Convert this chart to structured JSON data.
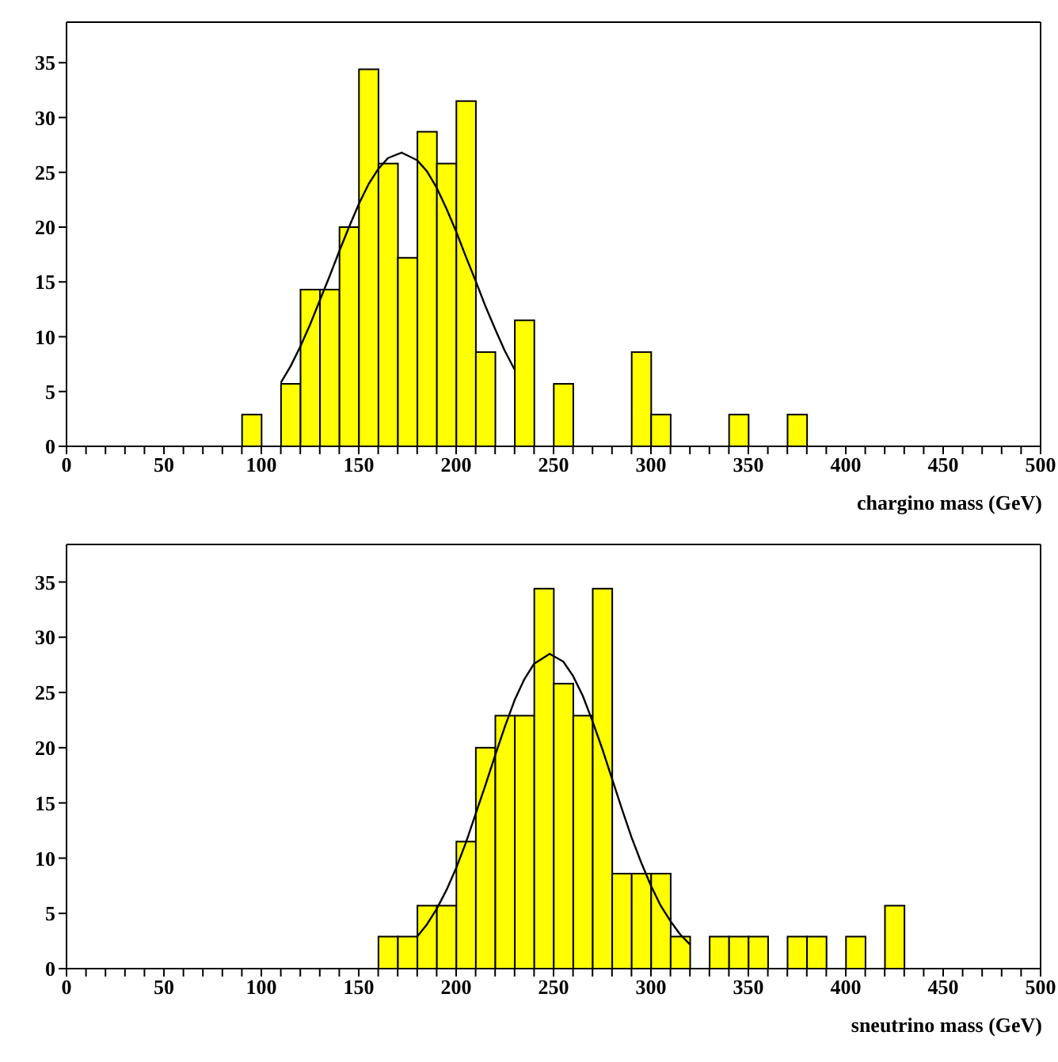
{
  "chart_data": [
    {
      "type": "histogram",
      "xlabel": "chargino mass (GeV)",
      "color": "#ffff00",
      "bins": [
        90,
        100,
        110,
        120,
        130,
        140,
        150,
        160,
        170,
        180,
        190,
        200,
        210,
        220,
        230,
        240,
        250,
        260,
        270,
        280,
        290,
        300,
        310,
        320,
        330,
        340,
        350,
        360,
        370,
        380
      ],
      "values": [
        2.9,
        0,
        5.7,
        14.3,
        14.3,
        20,
        34.4,
        25.8,
        17.2,
        28.7,
        25.8,
        31.5,
        8.6,
        0,
        11.5,
        0,
        5.7,
        0,
        0,
        0,
        8.6,
        2.9,
        0,
        0,
        0,
        2.9,
        0,
        0,
        2.9
      ],
      "series": [
        {
          "type": "line",
          "color": "#000000",
          "x": [
            110,
            115,
            120,
            125,
            130,
            135,
            140,
            145,
            150,
            155,
            160,
            165,
            172,
            180,
            185,
            190,
            195,
            200,
            205,
            210,
            215,
            220,
            225,
            230
          ],
          "values": [
            5.8,
            7.3,
            9.1,
            11.1,
            13.3,
            15.5,
            17.8,
            20.0,
            22.1,
            23.9,
            25.3,
            26.3,
            26.8,
            26.1,
            25.1,
            23.6,
            21.7,
            19.6,
            17.3,
            15.1,
            12.8,
            10.7,
            8.7,
            7.0
          ]
        }
      ],
      "xlim": [
        0,
        500
      ],
      "ylim": [
        0,
        38.7
      ],
      "xticks": [
        0,
        {
          "value": 10,
          "label": null
        },
        {
          "value": 20,
          "label": null
        },
        {
          "value": 30,
          "label": null
        },
        {
          "value": 40,
          "label": null
        },
        50,
        {
          "value": 60,
          "label": null
        },
        {
          "value": 70,
          "label": null
        },
        {
          "value": 80,
          "label": null
        },
        {
          "value": 90,
          "label": null
        },
        100,
        {
          "value": 110,
          "label": null
        },
        {
          "value": 120,
          "label": null
        },
        {
          "value": 130,
          "label": null
        },
        {
          "value": 140,
          "label": null
        },
        150,
        {
          "value": 160,
          "label": null
        },
        {
          "value": 170,
          "label": null
        },
        {
          "value": 180,
          "label": null
        },
        {
          "value": 190,
          "label": null
        },
        200,
        {
          "value": 210,
          "label": null
        },
        {
          "value": 220,
          "label": null
        },
        {
          "value": 230,
          "label": null
        },
        {
          "value": 240,
          "label": null
        },
        250,
        {
          "value": 260,
          "label": null
        },
        {
          "value": 270,
          "label": null
        },
        {
          "value": 280,
          "label": null
        },
        {
          "value": 290,
          "label": null
        },
        300,
        {
          "value": 310,
          "label": null
        },
        {
          "value": 320,
          "label": null
        },
        {
          "value": 330,
          "label": null
        },
        {
          "value": 340,
          "label": null
        },
        350,
        {
          "value": 360,
          "label": null
        },
        {
          "value": 370,
          "label": null
        },
        {
          "value": 380,
          "label": null
        },
        {
          "value": 390,
          "label": null
        },
        400,
        {
          "value": 410,
          "label": null
        },
        {
          "value": 420,
          "label": null
        },
        {
          "value": 430,
          "label": null
        },
        {
          "value": 440,
          "label": null
        },
        450,
        {
          "value": 460,
          "label": null
        },
        {
          "value": 470,
          "label": null
        },
        {
          "value": 480,
          "label": null
        },
        {
          "value": 490,
          "label": null
        },
        500
      ],
      "yticks": [
        0,
        5,
        10,
        15,
        20,
        25,
        30,
        35
      ]
    },
    {
      "type": "histogram",
      "xlabel": "sneutrino mass (GeV)",
      "color": "#ffff00",
      "bins": [
        160,
        170,
        180,
        190,
        200,
        210,
        220,
        230,
        240,
        250,
        260,
        270,
        280,
        290,
        300,
        310,
        320,
        330,
        340,
        350,
        360,
        370,
        380,
        390,
        400,
        410,
        420,
        430
      ],
      "values": [
        2.9,
        2.9,
        5.7,
        5.7,
        11.5,
        20,
        22.9,
        22.9,
        34.4,
        25.8,
        22.9,
        34.4,
        8.6,
        8.6,
        8.6,
        2.9,
        0,
        2.9,
        2.9,
        2.9,
        0,
        2.9,
        2.9,
        0,
        2.9,
        0,
        5.7
      ],
      "series": [
        {
          "type": "line",
          "color": "#000000",
          "x": [
            180,
            185,
            190,
            195,
            200,
            205,
            210,
            215,
            220,
            225,
            230,
            235,
            240,
            248,
            255,
            260,
            265,
            270,
            275,
            280,
            285,
            290,
            295,
            300,
            305,
            310,
            315,
            320
          ],
          "values": [
            2.9,
            4.0,
            5.4,
            7.1,
            9.1,
            11.4,
            14.0,
            16.6,
            19.3,
            21.9,
            24.3,
            26.2,
            27.6,
            28.5,
            27.8,
            26.5,
            24.7,
            22.4,
            19.9,
            17.2,
            14.5,
            11.9,
            9.6,
            7.5,
            5.7,
            4.3,
            3.1,
            2.2
          ]
        }
      ],
      "xlim": [
        0,
        500
      ],
      "ylim": [
        0,
        38.4
      ],
      "xticks": [
        0,
        {
          "value": 10,
          "label": null
        },
        {
          "value": 20,
          "label": null
        },
        {
          "value": 30,
          "label": null
        },
        {
          "value": 40,
          "label": null
        },
        50,
        {
          "value": 60,
          "label": null
        },
        {
          "value": 70,
          "label": null
        },
        {
          "value": 80,
          "label": null
        },
        {
          "value": 90,
          "label": null
        },
        100,
        {
          "value": 110,
          "label": null
        },
        {
          "value": 120,
          "label": null
        },
        {
          "value": 130,
          "label": null
        },
        {
          "value": 140,
          "label": null
        },
        150,
        {
          "value": 160,
          "label": null
        },
        {
          "value": 170,
          "label": null
        },
        {
          "value": 180,
          "label": null
        },
        {
          "value": 190,
          "label": null
        },
        200,
        {
          "value": 210,
          "label": null
        },
        {
          "value": 220,
          "label": null
        },
        {
          "value": 230,
          "label": null
        },
        {
          "value": 240,
          "label": null
        },
        250,
        {
          "value": 260,
          "label": null
        },
        {
          "value": 270,
          "label": null
        },
        {
          "value": 280,
          "label": null
        },
        {
          "value": 290,
          "label": null
        },
        300,
        {
          "value": 310,
          "label": null
        },
        {
          "value": 320,
          "label": null
        },
        {
          "value": 330,
          "label": null
        },
        {
          "value": 340,
          "label": null
        },
        350,
        {
          "value": 360,
          "label": null
        },
        {
          "value": 370,
          "label": null
        },
        {
          "value": 380,
          "label": null
        },
        {
          "value": 390,
          "label": null
        },
        400,
        {
          "value": 410,
          "label": null
        },
        {
          "value": 420,
          "label": null
        },
        {
          "value": 430,
          "label": null
        },
        {
          "value": 440,
          "label": null
        },
        450,
        {
          "value": 460,
          "label": null
        },
        {
          "value": 470,
          "label": null
        },
        {
          "value": 480,
          "label": null
        },
        {
          "value": 490,
          "label": null
        },
        500
      ],
      "yticks": [
        0,
        5,
        10,
        15,
        20,
        25,
        30,
        35
      ]
    }
  ]
}
